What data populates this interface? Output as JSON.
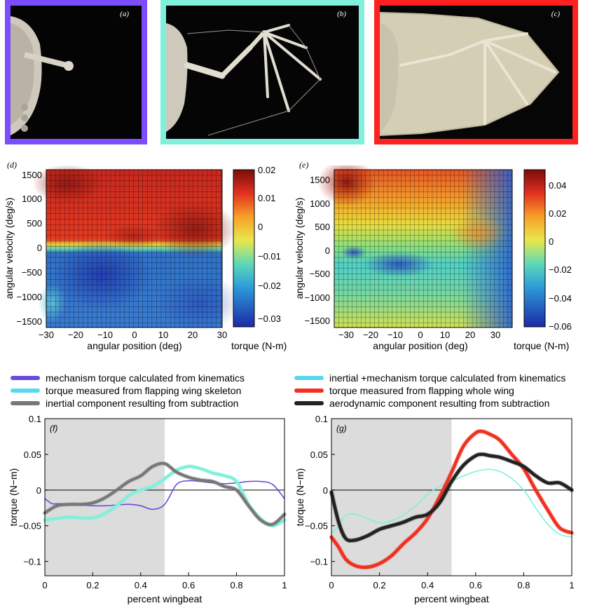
{
  "photos": [
    {
      "label": "(a)",
      "border": "#7b4dff"
    },
    {
      "label": "(b)",
      "border": "#7ff0dc"
    },
    {
      "label": "(c)",
      "border": "#ff2020"
    }
  ],
  "heatmaps": {
    "d": {
      "label": "(d)",
      "ylabel": "angular velocity (deg/s)",
      "xlabel": "angular position (deg)",
      "xticks": [
        "−30",
        "−20",
        "−10",
        "0",
        "10",
        "20",
        "30"
      ],
      "yticks": [
        "1500",
        "1000",
        "500",
        "0",
        "−500",
        "−1000",
        "−1500"
      ],
      "cbar_ticks": [
        "0.02",
        "0.01",
        "0",
        "−0.01",
        "−0.02",
        "−0.03"
      ],
      "cbar_label": "torque (N-m)"
    },
    "e": {
      "label": "(e)",
      "ylabel": "angular velocity (deg/s)",
      "xlabel": "angular position (deg)",
      "xticks": [
        "−30",
        "−20",
        "−10",
        "0",
        "10",
        "20",
        "30"
      ],
      "yticks": [
        "1500",
        "1000",
        "500",
        "0",
        "−500",
        "−1000",
        "−1500"
      ],
      "cbar_ticks": [
        "0.04",
        "0.02",
        "0",
        "−0.02",
        "−0.04",
        "−0.06"
      ],
      "cbar_label": "torque (N-m)"
    }
  },
  "legend": {
    "left": [
      {
        "text": "mechanism torque calculated from kinematics",
        "color": "#6a4bdc"
      },
      {
        "text": "torque measured from flapping wing skeleton",
        "color": "#5ad8f0"
      },
      {
        "text": "inertial component resulting from subtraction",
        "color": "#777777"
      }
    ],
    "right": [
      {
        "text": "inertial +mechanism torque calculated from kinematics",
        "color": "#5ad8f0"
      },
      {
        "text": "torque measured from flapping whole wing",
        "color": "#f03020"
      },
      {
        "text": "aerodynamic component resulting from subtraction",
        "color": "#222222"
      }
    ]
  },
  "chart_data": [
    {
      "panel": "(f)",
      "type": "line",
      "xlabel": "percent wingbeat",
      "ylabel": "torque (N−m)",
      "xlim": [
        0,
        1
      ],
      "ylim": [
        -0.12,
        0.1
      ],
      "xticks": [
        "0",
        "0.2",
        "0.4",
        "0.6",
        "0.8",
        "1"
      ],
      "yticks": [
        "0.1",
        "0.05",
        "0",
        "−0.05",
        "−0.1"
      ],
      "shaded_x": [
        0,
        0.5
      ],
      "series": [
        {
          "name": "mechanism torque calculated from kinematics",
          "color": "#6a4bdc",
          "width": 1.6,
          "x": [
            0,
            0.03,
            0.06,
            0.1,
            0.15,
            0.2,
            0.25,
            0.3,
            0.35,
            0.4,
            0.45,
            0.5,
            0.55,
            0.6,
            0.65,
            0.7,
            0.75,
            0.8,
            0.85,
            0.9,
            0.95,
            1.0
          ],
          "y": [
            -0.012,
            -0.019,
            -0.019,
            -0.02,
            -0.021,
            -0.022,
            -0.022,
            -0.021,
            -0.02,
            -0.022,
            -0.027,
            -0.02,
            0.008,
            0.013,
            0.012,
            0.01,
            0.009,
            0.01,
            0.012,
            0.012,
            0.008,
            -0.012
          ]
        },
        {
          "name": "torque measured from flapping wing skeleton",
          "color": "#7ff0dc",
          "width": 4,
          "x": [
            0,
            0.05,
            0.1,
            0.15,
            0.2,
            0.25,
            0.3,
            0.35,
            0.4,
            0.45,
            0.5,
            0.55,
            0.6,
            0.65,
            0.7,
            0.75,
            0.8,
            0.85,
            0.9,
            0.95,
            1.0
          ],
          "y": [
            -0.042,
            -0.04,
            -0.038,
            -0.039,
            -0.039,
            -0.033,
            -0.022,
            -0.008,
            0.0,
            0.005,
            0.016,
            0.028,
            0.033,
            0.03,
            0.024,
            0.02,
            0.012,
            -0.02,
            -0.04,
            -0.05,
            -0.042
          ]
        },
        {
          "name": "inertial component resulting from subtraction",
          "color": "#777777",
          "width": 4,
          "x": [
            0,
            0.05,
            0.1,
            0.15,
            0.2,
            0.25,
            0.3,
            0.35,
            0.4,
            0.45,
            0.5,
            0.55,
            0.6,
            0.65,
            0.7,
            0.75,
            0.8,
            0.85,
            0.9,
            0.95,
            1.0
          ],
          "y": [
            -0.032,
            -0.022,
            -0.02,
            -0.02,
            -0.018,
            -0.011,
            0.0,
            0.012,
            0.02,
            0.033,
            0.037,
            0.025,
            0.018,
            0.014,
            0.012,
            0.005,
            0.0,
            -0.022,
            -0.042,
            -0.048,
            -0.034
          ]
        }
      ]
    },
    {
      "panel": "(g)",
      "type": "line",
      "xlabel": "percent wingbeat",
      "ylabel": "torque (N−m)",
      "xlim": [
        0,
        1
      ],
      "ylim": [
        -0.12,
        0.1
      ],
      "xticks": [
        "0",
        "0.2",
        "0.4",
        "0.6",
        "0.8",
        "1"
      ],
      "yticks": [
        "0.1",
        "0.05",
        "0",
        "−0.05",
        "−0.1"
      ],
      "shaded_x": [
        0,
        0.5
      ],
      "series": [
        {
          "name": "inertial +mechanism torque calculated from kinematics",
          "color": "#7ff0dc",
          "width": 1.6,
          "x": [
            0,
            0.03,
            0.06,
            0.1,
            0.15,
            0.2,
            0.25,
            0.3,
            0.35,
            0.4,
            0.45,
            0.5,
            0.55,
            0.6,
            0.65,
            0.7,
            0.75,
            0.8,
            0.85,
            0.9,
            0.95,
            1.0
          ],
          "y": [
            -0.062,
            -0.05,
            -0.035,
            -0.034,
            -0.04,
            -0.046,
            -0.043,
            -0.035,
            -0.022,
            -0.006,
            0.005,
            0.012,
            0.02,
            0.026,
            0.029,
            0.026,
            0.016,
            0.0,
            -0.025,
            -0.048,
            -0.062,
            -0.066
          ]
        },
        {
          "name": "torque measured from flapping whole wing",
          "color": "#f03020",
          "width": 4.5,
          "x": [
            0,
            0.03,
            0.06,
            0.1,
            0.15,
            0.2,
            0.25,
            0.3,
            0.35,
            0.4,
            0.45,
            0.5,
            0.55,
            0.6,
            0.63,
            0.66,
            0.7,
            0.75,
            0.8,
            0.85,
            0.9,
            0.95,
            1.0
          ],
          "y": [
            -0.066,
            -0.08,
            -0.097,
            -0.106,
            -0.108,
            -0.103,
            -0.092,
            -0.075,
            -0.06,
            -0.04,
            -0.01,
            0.025,
            0.062,
            0.08,
            0.082,
            0.078,
            0.07,
            0.05,
            0.03,
            0.0,
            -0.028,
            -0.053,
            -0.06
          ]
        },
        {
          "name": "aerodynamic component resulting from subtraction",
          "color": "#222222",
          "width": 4.5,
          "x": [
            0,
            0.03,
            0.06,
            0.1,
            0.15,
            0.2,
            0.25,
            0.3,
            0.35,
            0.4,
            0.45,
            0.5,
            0.55,
            0.6,
            0.63,
            0.66,
            0.7,
            0.75,
            0.8,
            0.85,
            0.9,
            0.95,
            1.0
          ],
          "y": [
            -0.003,
            -0.045,
            -0.068,
            -0.07,
            -0.064,
            -0.055,
            -0.05,
            -0.045,
            -0.038,
            -0.034,
            -0.018,
            0.012,
            0.035,
            0.048,
            0.05,
            0.048,
            0.046,
            0.04,
            0.033,
            0.02,
            0.01,
            0.01,
            0.0
          ]
        }
      ]
    }
  ]
}
